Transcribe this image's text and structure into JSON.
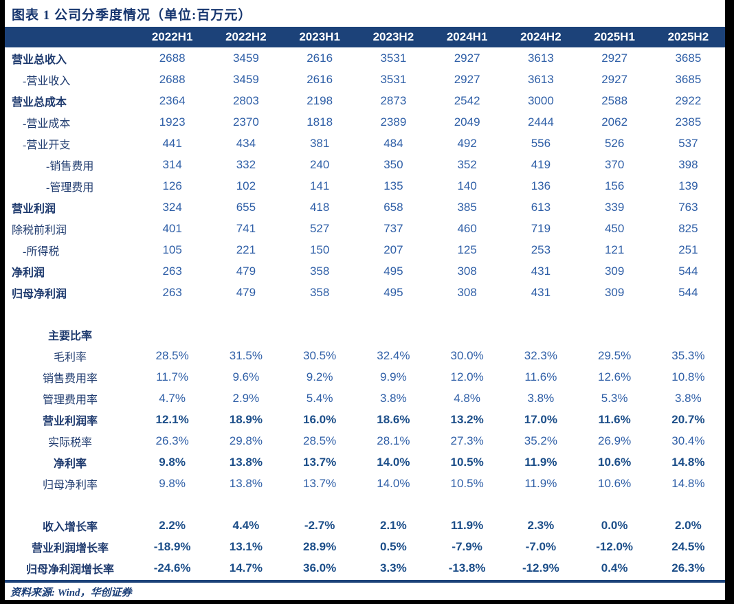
{
  "colors": {
    "header_bg": "#1C4279",
    "header_text": "#FFFFFF",
    "label_text": "#1E3A6E",
    "value_text": "#2F5FA7",
    "value_bold_text": "#1C4E89",
    "title_text": "#16356E",
    "bottom_rule": "#1C4279",
    "frame": "#000000"
  },
  "chart_data": {
    "type": "table",
    "title": "图表 1  公司分季度情况（单位:百万元）",
    "source_note": "资料来源: Wind，华创证券",
    "columns": [
      "2022H1",
      "2022H2",
      "2023H1",
      "2023H2",
      "2024H1",
      "2024H2",
      "2025H1",
      "2025H2"
    ],
    "rows": [
      {
        "label": "营业总收入",
        "indent": 0,
        "label_bold": true,
        "values_bold": false,
        "align": "left",
        "values": [
          "2688",
          "3459",
          "2616",
          "3531",
          "2927",
          "3613",
          "2927",
          "3685"
        ]
      },
      {
        "label": "-营业收入",
        "indent": 1,
        "label_bold": false,
        "values_bold": false,
        "align": "left",
        "values": [
          "2688",
          "3459",
          "2616",
          "3531",
          "2927",
          "3613",
          "2927",
          "3685"
        ]
      },
      {
        "label": "营业总成本",
        "indent": 0,
        "label_bold": true,
        "values_bold": false,
        "align": "left",
        "values": [
          "2364",
          "2803",
          "2198",
          "2873",
          "2542",
          "3000",
          "2588",
          "2922"
        ]
      },
      {
        "label": "-营业成本",
        "indent": 1,
        "label_bold": false,
        "values_bold": false,
        "align": "left",
        "values": [
          "1923",
          "2370",
          "1818",
          "2389",
          "2049",
          "2444",
          "2062",
          "2385"
        ]
      },
      {
        "label": "-营业开支",
        "indent": 1,
        "label_bold": false,
        "values_bold": false,
        "align": "left",
        "values": [
          "441",
          "434",
          "381",
          "484",
          "492",
          "556",
          "526",
          "537"
        ]
      },
      {
        "label": "-销售费用",
        "indent": 2,
        "label_bold": false,
        "values_bold": false,
        "align": "left",
        "values": [
          "314",
          "332",
          "240",
          "350",
          "352",
          "419",
          "370",
          "398"
        ]
      },
      {
        "label": "-管理费用",
        "indent": 2,
        "label_bold": false,
        "values_bold": false,
        "align": "left",
        "values": [
          "126",
          "102",
          "141",
          "135",
          "140",
          "136",
          "156",
          "139"
        ]
      },
      {
        "label": "营业利润",
        "indent": 0,
        "label_bold": true,
        "values_bold": false,
        "align": "left",
        "values": [
          "324",
          "655",
          "418",
          "658",
          "385",
          "613",
          "339",
          "763"
        ]
      },
      {
        "label": "除税前利润",
        "indent": 0,
        "label_bold": false,
        "values_bold": false,
        "align": "left",
        "values": [
          "401",
          "741",
          "527",
          "737",
          "460",
          "719",
          "450",
          "825"
        ]
      },
      {
        "label": "-所得税",
        "indent": 1,
        "label_bold": false,
        "values_bold": false,
        "align": "left",
        "values": [
          "105",
          "221",
          "150",
          "207",
          "125",
          "253",
          "121",
          "251"
        ]
      },
      {
        "label": "净利润",
        "indent": 0,
        "label_bold": true,
        "values_bold": false,
        "align": "left",
        "values": [
          "263",
          "479",
          "358",
          "495",
          "308",
          "431",
          "309",
          "544"
        ]
      },
      {
        "label": "归母净利润",
        "indent": 0,
        "label_bold": true,
        "values_bold": false,
        "align": "left",
        "values": [
          "263",
          "479",
          "358",
          "495",
          "308",
          "431",
          "309",
          "544"
        ]
      },
      {
        "spacer": true
      },
      {
        "label": "主要比率",
        "indent": 0,
        "label_bold": true,
        "values_bold": false,
        "align": "center",
        "values": [
          "",
          "",
          "",
          "",
          "",
          "",
          "",
          ""
        ]
      },
      {
        "label": "毛利率",
        "indent": 0,
        "label_bold": false,
        "values_bold": false,
        "align": "center",
        "values": [
          "28.5%",
          "31.5%",
          "30.5%",
          "32.4%",
          "30.0%",
          "32.3%",
          "29.5%",
          "35.3%"
        ]
      },
      {
        "label": "销售费用率",
        "indent": 0,
        "label_bold": false,
        "values_bold": false,
        "align": "center",
        "values": [
          "11.7%",
          "9.6%",
          "9.2%",
          "9.9%",
          "12.0%",
          "11.6%",
          "12.6%",
          "10.8%"
        ]
      },
      {
        "label": "管理费用率",
        "indent": 0,
        "label_bold": false,
        "values_bold": false,
        "align": "center",
        "values": [
          "4.7%",
          "2.9%",
          "5.4%",
          "3.8%",
          "4.8%",
          "3.8%",
          "5.3%",
          "3.8%"
        ]
      },
      {
        "label": "营业利润率",
        "indent": 0,
        "label_bold": true,
        "values_bold": true,
        "align": "center",
        "values": [
          "12.1%",
          "18.9%",
          "16.0%",
          "18.6%",
          "13.2%",
          "17.0%",
          "11.6%",
          "20.7%"
        ]
      },
      {
        "label": "实际税率",
        "indent": 0,
        "label_bold": false,
        "values_bold": false,
        "align": "center",
        "values": [
          "26.3%",
          "29.8%",
          "28.5%",
          "28.1%",
          "27.3%",
          "35.2%",
          "26.9%",
          "30.4%"
        ]
      },
      {
        "label": "净利率",
        "indent": 0,
        "label_bold": true,
        "values_bold": true,
        "align": "center",
        "values": [
          "9.8%",
          "13.8%",
          "13.7%",
          "14.0%",
          "10.5%",
          "11.9%",
          "10.6%",
          "14.8%"
        ]
      },
      {
        "label": "归母净利率",
        "indent": 0,
        "label_bold": false,
        "values_bold": false,
        "align": "center",
        "values": [
          "9.8%",
          "13.8%",
          "13.7%",
          "14.0%",
          "10.5%",
          "11.9%",
          "10.6%",
          "14.8%"
        ]
      },
      {
        "spacer": true
      },
      {
        "label": "收入增长率",
        "indent": 0,
        "label_bold": true,
        "values_bold": true,
        "align": "center",
        "values": [
          "2.2%",
          "4.4%",
          "-2.7%",
          "2.1%",
          "11.9%",
          "2.3%",
          "0.0%",
          "2.0%"
        ]
      },
      {
        "label": "营业利润增长率",
        "indent": 0,
        "label_bold": true,
        "values_bold": true,
        "align": "center",
        "values": [
          "-18.9%",
          "13.1%",
          "28.9%",
          "0.5%",
          "-7.9%",
          "-7.0%",
          "-12.0%",
          "24.5%"
        ]
      },
      {
        "label": "归母净利润增长率",
        "indent": 0,
        "label_bold": true,
        "values_bold": true,
        "align": "center",
        "values": [
          "-24.6%",
          "14.7%",
          "36.0%",
          "3.3%",
          "-13.8%",
          "-12.9%",
          "0.4%",
          "26.3%"
        ]
      }
    ]
  }
}
